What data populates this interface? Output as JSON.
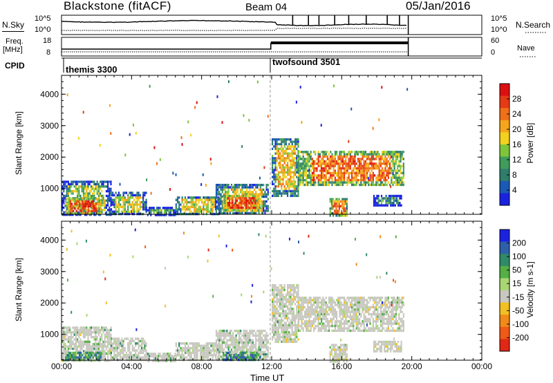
{
  "header": {
    "title": "Blackstone (fitACF)",
    "beam": "Beam 04",
    "date": "05/Jan/2016"
  },
  "noise_panel": {
    "left_label": "N.Sky",
    "left_ticks": [
      "10^5",
      "10^0"
    ],
    "right_ticks": [
      "10^5",
      "10^0"
    ],
    "right_label": "N.Search"
  },
  "freq_panel": {
    "left_label_1": "Freq.",
    "left_label_2": "[MHz]",
    "left_ticks": [
      "18",
      "8"
    ],
    "right_ticks": [
      "60",
      "0"
    ],
    "right_label": "Nave"
  },
  "cpid": {
    "label": "CPID",
    "segments": [
      {
        "name": "themis 3300",
        "start_hour": 0.0
      },
      {
        "name": "twofsound 3501",
        "start_hour": 11.92
      }
    ]
  },
  "chart_data": [
    {
      "type": "heatmap",
      "id": "power",
      "ylabel": "Slant Range [km]",
      "xlabel": "",
      "yticks": [
        "1000",
        "2000",
        "3000",
        "4000"
      ],
      "ylim": [
        180,
        4600
      ],
      "xlim": [
        0,
        24
      ],
      "colorbar": {
        "label": "Power [dB]",
        "ticks": [
          "4",
          "8",
          "12",
          "16",
          "20",
          "24",
          "28"
        ],
        "colors": [
          "#1a22e0",
          "#1a5ab4",
          "#2f7d6b",
          "#3f9c5c",
          "#7dc63c",
          "#f2d21e",
          "#f5a51c",
          "#f07018",
          "#e63a14",
          "#dd1010"
        ]
      },
      "regions": [
        {
          "t0": 0.0,
          "t1": 2.8,
          "r0": 180,
          "r1": 1250,
          "level": 0.45
        },
        {
          "t0": 0.2,
          "t1": 2.2,
          "r0": 250,
          "r1": 700,
          "level": 0.85
        },
        {
          "t0": 2.8,
          "t1": 4.8,
          "r0": 180,
          "r1": 900,
          "level": 0.5
        },
        {
          "t0": 4.8,
          "t1": 6.5,
          "r0": 180,
          "r1": 420,
          "level": 0.35
        },
        {
          "t0": 6.5,
          "t1": 9.0,
          "r0": 180,
          "r1": 750,
          "level": 0.55
        },
        {
          "t0": 8.8,
          "t1": 11.8,
          "r0": 180,
          "r1": 1150,
          "level": 0.55
        },
        {
          "t0": 9.2,
          "t1": 11.3,
          "r0": 300,
          "r1": 800,
          "level": 0.85
        },
        {
          "t0": 12.0,
          "t1": 13.5,
          "r0": 800,
          "r1": 2600,
          "level": 0.6
        },
        {
          "t0": 13.5,
          "t1": 19.5,
          "r0": 1100,
          "r1": 2200,
          "level": 0.75
        },
        {
          "t0": 15.3,
          "t1": 16.3,
          "r0": 150,
          "r1": 700,
          "level": 0.7
        },
        {
          "t0": 17.8,
          "t1": 19.4,
          "r0": 500,
          "r1": 800,
          "level": 0.3
        }
      ]
    },
    {
      "type": "heatmap",
      "id": "velocity",
      "ylabel": "Slant Range [km]",
      "xlabel": "Time UT",
      "yticks": [
        "1000",
        "2000",
        "3000",
        "4000"
      ],
      "xticks": [
        "00:00",
        "04:00",
        "08:00",
        "12:00",
        "16:00",
        "20:00",
        "00:00"
      ],
      "ylim": [
        180,
        4600
      ],
      "xlim": [
        0,
        24
      ],
      "colorbar": {
        "label": "Velocity [m s-1]",
        "ticks": [
          "200",
          "100",
          "50",
          "15",
          "-15",
          "-50",
          "-100",
          "-200"
        ],
        "colors": [
          "#1a22e0",
          "#2f5fa8",
          "#2f8a6a",
          "#54b044",
          "#a9d673",
          "#c8c8c0",
          "#f2c022",
          "#f28a1a",
          "#f05a16",
          "#e02814"
        ]
      },
      "regions": [
        {
          "t0": 0.0,
          "t1": 2.8,
          "r0": 180,
          "r1": 1250,
          "level": 0.55
        },
        {
          "t0": 0.2,
          "t1": 2.2,
          "r0": 180,
          "r1": 450,
          "level": 0.72
        },
        {
          "t0": 2.8,
          "t1": 4.8,
          "r0": 180,
          "r1": 900,
          "level": 0.6
        },
        {
          "t0": 4.8,
          "t1": 6.5,
          "r0": 180,
          "r1": 420,
          "level": 0.65
        },
        {
          "t0": 6.5,
          "t1": 9.0,
          "r0": 180,
          "r1": 750,
          "level": 0.62
        },
        {
          "t0": 8.8,
          "t1": 11.8,
          "r0": 180,
          "r1": 1150,
          "level": 0.58
        },
        {
          "t0": 9.2,
          "t1": 11.3,
          "r0": 180,
          "r1": 450,
          "level": 0.75
        },
        {
          "t0": 12.0,
          "t1": 13.5,
          "r0": 800,
          "r1": 2600,
          "level": 0.5
        },
        {
          "t0": 13.5,
          "t1": 19.5,
          "r0": 1100,
          "r1": 2200,
          "level": 0.5
        },
        {
          "t0": 15.3,
          "t1": 16.3,
          "r0": 150,
          "r1": 700,
          "level": 0.5
        },
        {
          "t0": 17.8,
          "t1": 19.4,
          "r0": 500,
          "r1": 800,
          "level": 0.5
        }
      ]
    }
  ]
}
